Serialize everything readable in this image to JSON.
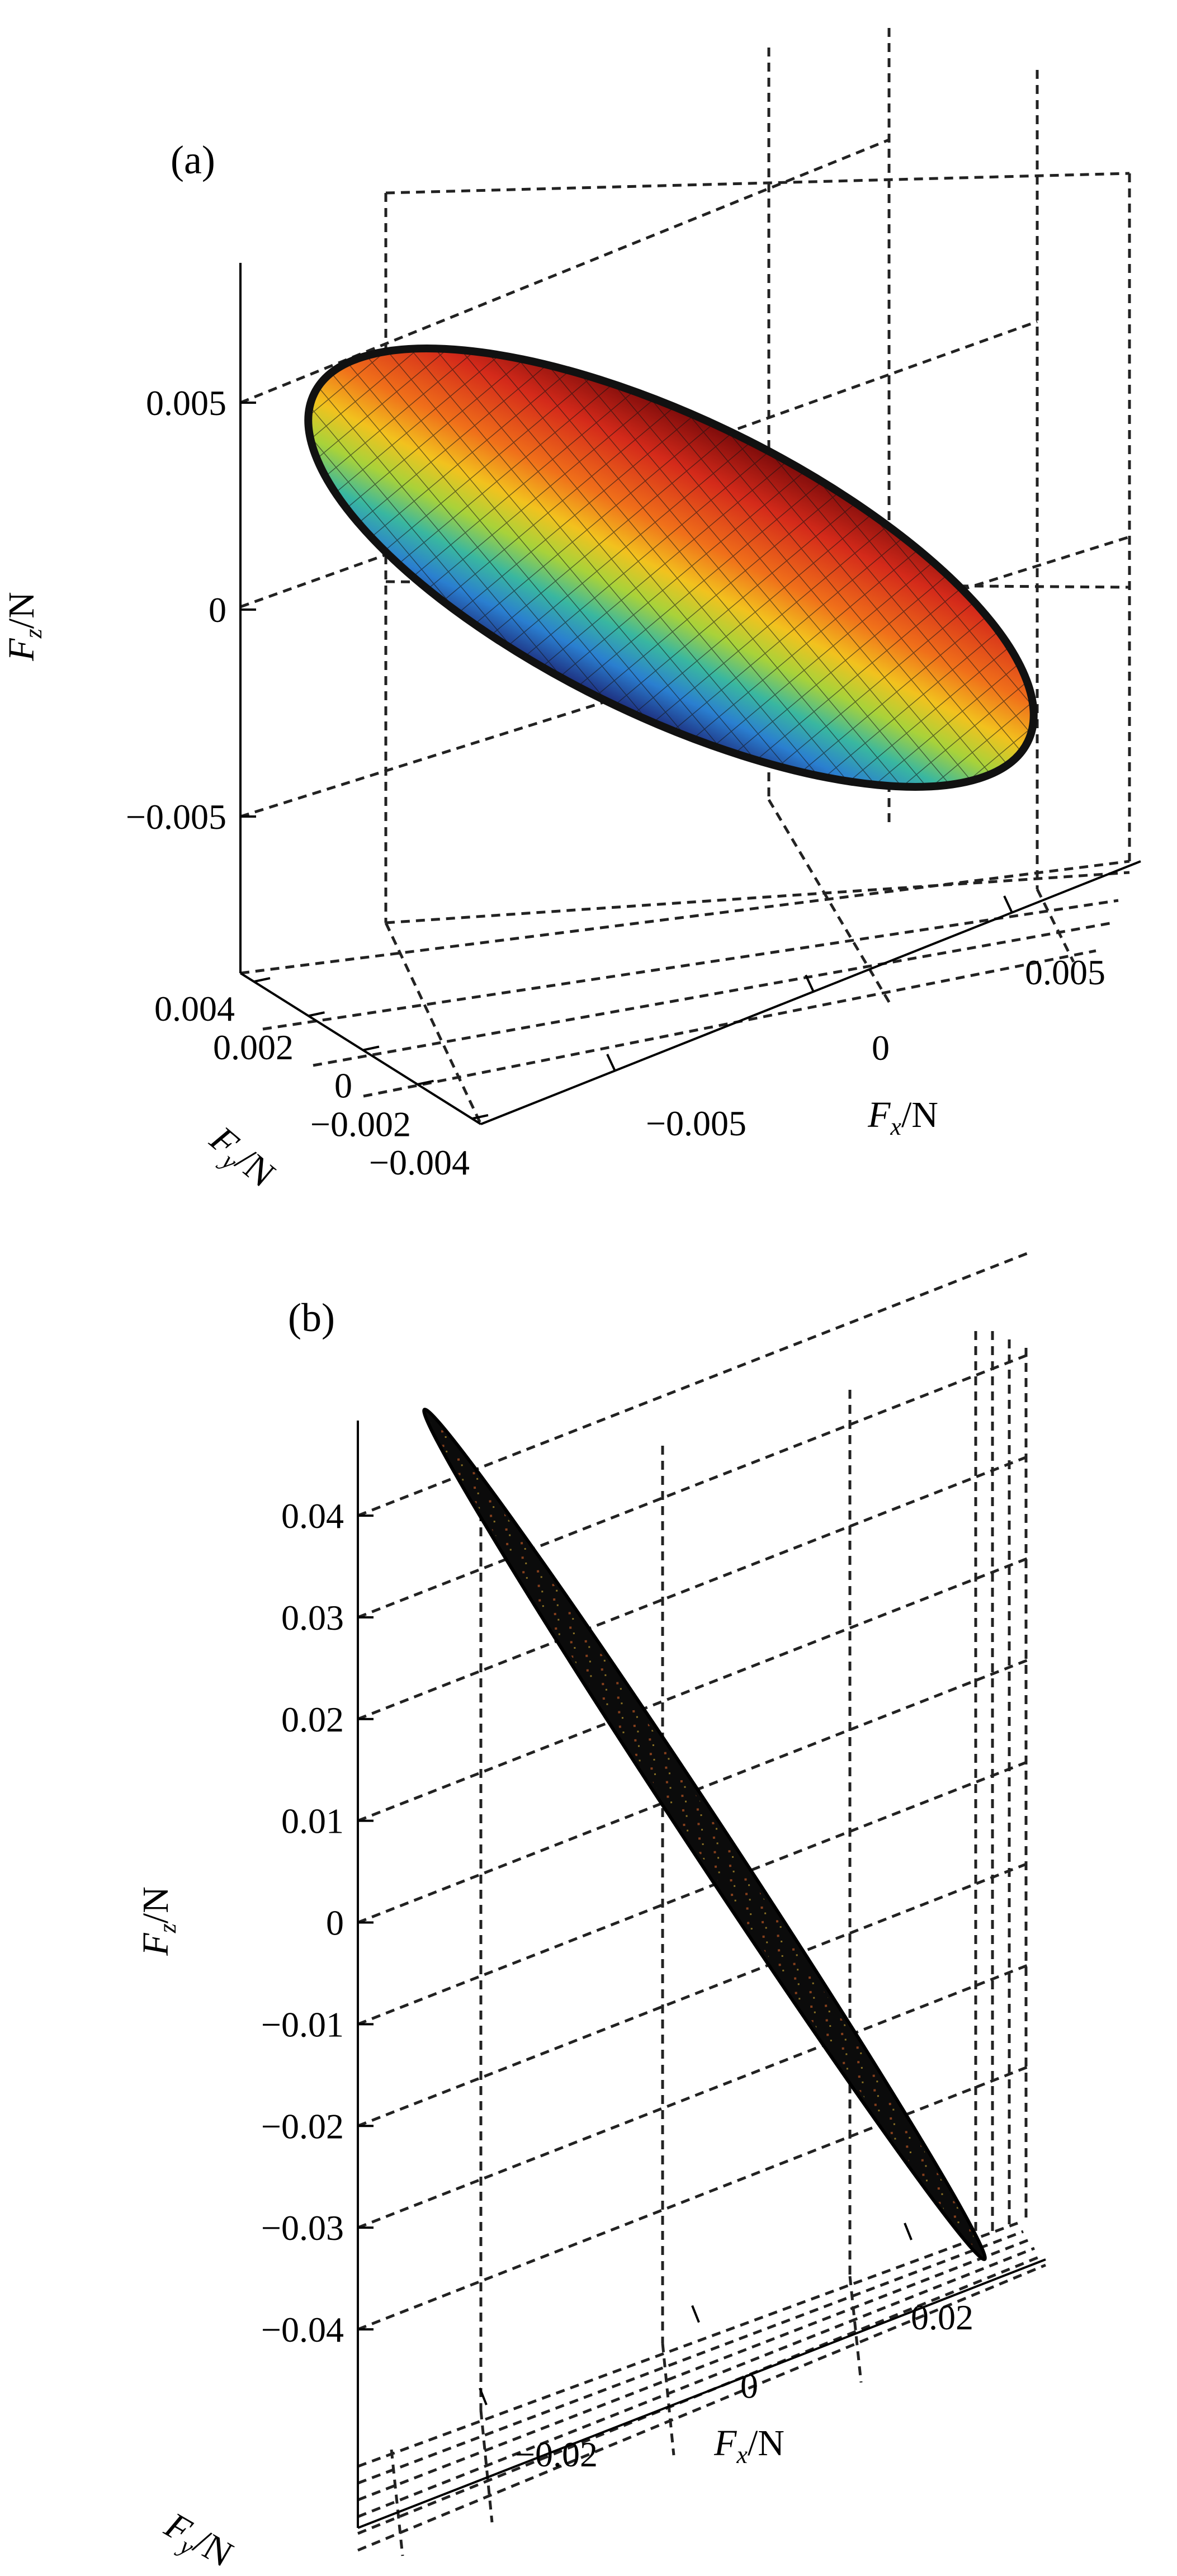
{
  "chart_data": [
    {
      "panel": "(a)",
      "type": "surface3d",
      "shape": "ellipsoid",
      "colormap": "jet",
      "x_ticks": [
        -0.005,
        0,
        0.005
      ],
      "x_tick_labels": [
        "−0.005",
        "0",
        "0.005"
      ],
      "y_ticks": [
        0.004,
        0.002,
        0,
        -0.002,
        -0.004
      ],
      "y_tick_labels": [
        "0.004",
        "0.002",
        "0",
        "−0.002",
        "−0.004"
      ],
      "z_ticks": [
        0.005,
        0,
        -0.005
      ],
      "z_tick_labels": [
        "0.005",
        "0",
        "−0.005"
      ],
      "xlabel": {
        "main": "F",
        "sub": "x",
        "unit": "/N"
      },
      "ylabel": {
        "main": "F",
        "sub": "y",
        "unit": "/N"
      },
      "zlabel": {
        "main": "F",
        "sub": "z",
        "unit": "/N"
      },
      "grid": true
    },
    {
      "panel": "(b)",
      "type": "surface3d",
      "shape": "flattened ellipsoid",
      "colormap": "jet",
      "x_ticks": [
        -0.02,
        0,
        0.02
      ],
      "x_tick_labels": [
        "−0.02",
        "0",
        "0.02"
      ],
      "z_ticks": [
        0.04,
        0.03,
        0.02,
        0.01,
        0,
        -0.01,
        -0.02,
        -0.03,
        -0.04
      ],
      "z_tick_labels": [
        "0.04",
        "0.03",
        "0.02",
        "0.01",
        "0",
        "−0.01",
        "−0.02",
        "−0.03",
        "−0.04"
      ],
      "xlabel": {
        "main": "F",
        "sub": "x",
        "unit": "/N"
      },
      "ylabel": {
        "main": "F",
        "sub": "y",
        "unit": "/N"
      },
      "zlabel": {
        "main": "F",
        "sub": "z",
        "unit": "/N"
      },
      "grid": true
    }
  ]
}
